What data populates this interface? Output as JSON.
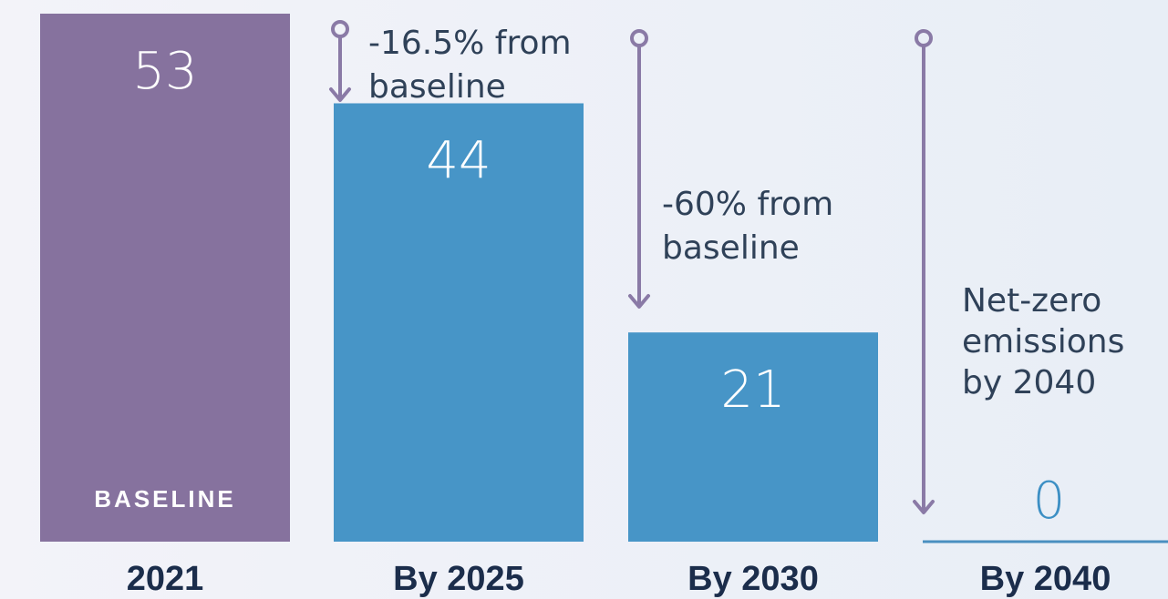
{
  "colors": {
    "baseline_bar": "#86729e",
    "target_bar": "#4795c7",
    "zero_line": "#4a8fc0",
    "zero_text": "#3d8fc4",
    "arrow": "#8a7aa6",
    "category_text": "#1b2d4b",
    "note_text": "#2f4158",
    "bar_text": "#ffffff"
  },
  "chart_data": {
    "type": "bar",
    "categories": [
      "2021",
      "By 2025",
      "By 2030",
      "By 2040"
    ],
    "values": [
      53,
      44,
      21,
      0
    ],
    "value_labels": [
      "53",
      "44",
      "21",
      "0"
    ],
    "ylim": [
      0,
      53
    ],
    "grid": false,
    "bar_tags": [
      "BASELINE",
      "",
      "",
      ""
    ],
    "annotations": [
      {
        "category": "By 2025",
        "lines": [
          "-16.5% from",
          "baseline"
        ]
      },
      {
        "category": "By 2030",
        "lines": [
          "-60% from",
          "baseline"
        ]
      },
      {
        "category": "By 2040",
        "lines": [
          "Net-zero",
          "emissions",
          "by 2040"
        ]
      }
    ]
  }
}
